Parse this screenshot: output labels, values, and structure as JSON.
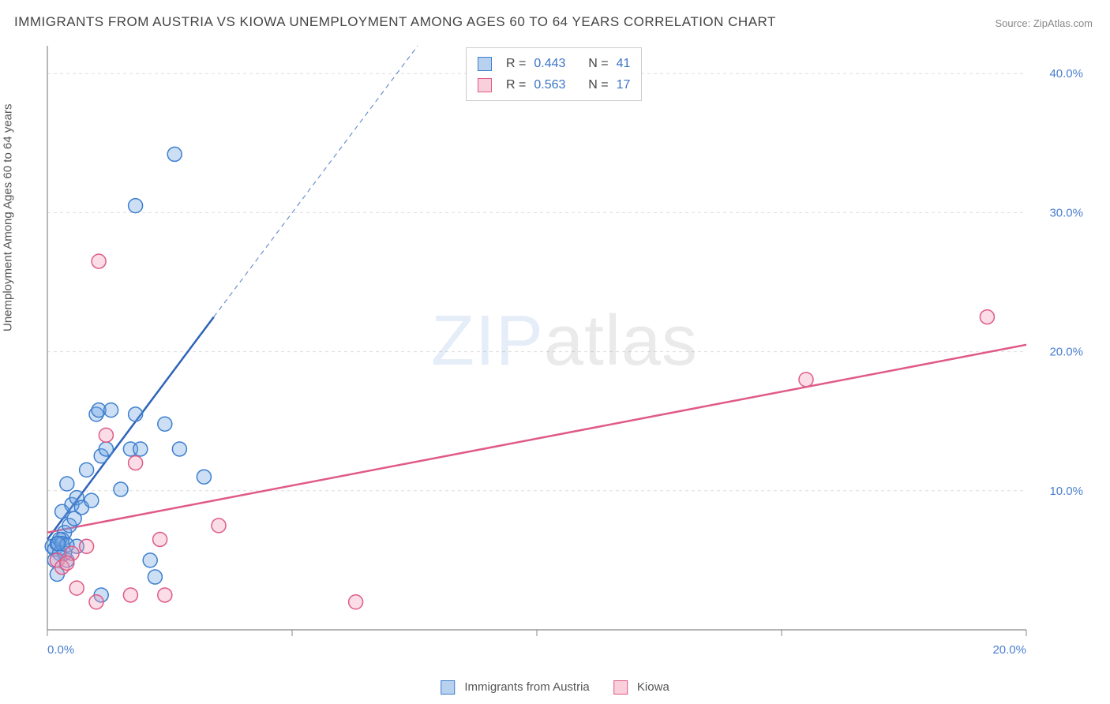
{
  "title": "IMMIGRANTS FROM AUSTRIA VS KIOWA UNEMPLOYMENT AMONG AGES 60 TO 64 YEARS CORRELATION CHART",
  "source": "Source: ZipAtlas.com",
  "watermark": "ZIPatlas",
  "ylabel": "Unemployment Among Ages 60 to 64 years",
  "chart": {
    "type": "scatter",
    "xlim": [
      0,
      20
    ],
    "ylim": [
      0,
      42
    ],
    "xtick_step": 5,
    "ytick_step": 10,
    "xtick_labels": [
      "0.0%",
      "",
      "",
      "",
      "20.0%"
    ],
    "ytick_labels": [
      "",
      "10.0%",
      "20.0%",
      "30.0%",
      "40.0%"
    ],
    "grid_color": "#dddddd",
    "axis_color": "#888888",
    "background_color": "#ffffff",
    "marker_radius": 9,
    "marker_stroke_width": 1.5,
    "marker_fill_opacity": 0.35,
    "series": [
      {
        "name": "Immigrants from Austria",
        "color": "#6fa4e0",
        "stroke": "#3d7fcf",
        "line_color": "#2d63b8",
        "line_width": 2.5,
        "r_value": "0.443",
        "n_value": "41",
        "trend": {
          "x1": 0,
          "y1": 6.5,
          "x2": 3.4,
          "y2": 22.5,
          "dash_x2": 8.1,
          "dash_y2": 44.5
        },
        "points": [
          [
            0.1,
            6.0
          ],
          [
            0.15,
            5.8
          ],
          [
            0.2,
            6.2
          ],
          [
            0.25,
            5.5
          ],
          [
            0.3,
            6.5
          ],
          [
            0.35,
            7.0
          ],
          [
            0.4,
            5.0
          ],
          [
            0.3,
            8.5
          ],
          [
            0.5,
            9.0
          ],
          [
            0.6,
            9.5
          ],
          [
            0.4,
            10.5
          ],
          [
            0.7,
            8.8
          ],
          [
            0.8,
            11.5
          ],
          [
            0.9,
            9.3
          ],
          [
            1.0,
            15.5
          ],
          [
            1.05,
            15.8
          ],
          [
            1.1,
            12.5
          ],
          [
            1.3,
            15.8
          ],
          [
            1.2,
            13.0
          ],
          [
            1.1,
            2.5
          ],
          [
            1.5,
            10.1
          ],
          [
            1.7,
            13.0
          ],
          [
            1.8,
            15.5
          ],
          [
            1.9,
            13.0
          ],
          [
            2.1,
            5.0
          ],
          [
            2.2,
            3.8
          ],
          [
            2.4,
            14.8
          ],
          [
            2.7,
            13.0
          ],
          [
            3.2,
            11.0
          ],
          [
            1.8,
            30.5
          ],
          [
            2.6,
            34.2
          ],
          [
            0.2,
            4.0
          ],
          [
            0.15,
            5.0
          ],
          [
            0.25,
            6.5
          ],
          [
            0.35,
            5.5
          ],
          [
            0.45,
            7.5
          ],
          [
            0.55,
            8.0
          ],
          [
            0.3,
            6.2
          ],
          [
            0.6,
            6.0
          ],
          [
            0.4,
            6.1
          ],
          [
            0.22,
            6.2
          ]
        ]
      },
      {
        "name": "Kiowa",
        "color": "#f29fb6",
        "stroke": "#e05a86",
        "line_color": "#e05a86",
        "line_width": 2.5,
        "r_value": "0.563",
        "n_value": "17",
        "trend": {
          "x1": 0,
          "y1": 7.0,
          "x2": 20,
          "y2": 20.5
        },
        "points": [
          [
            0.2,
            5.0
          ],
          [
            0.3,
            4.5
          ],
          [
            0.5,
            5.5
          ],
          [
            0.6,
            3.0
          ],
          [
            0.8,
            6.0
          ],
          [
            1.0,
            2.0
          ],
          [
            1.2,
            14.0
          ],
          [
            1.7,
            2.5
          ],
          [
            1.8,
            12.0
          ],
          [
            2.3,
            6.5
          ],
          [
            2.4,
            2.5
          ],
          [
            3.5,
            7.5
          ],
          [
            1.05,
            26.5
          ],
          [
            6.3,
            2.0
          ],
          [
            15.5,
            18.0
          ],
          [
            19.2,
            22.5
          ],
          [
            0.4,
            4.8
          ]
        ]
      }
    ]
  },
  "legend": {
    "series1_label": "Immigrants from Austria",
    "series2_label": "Kiowa"
  },
  "stats_box": {
    "r_label": "R =",
    "n_label": "N ="
  }
}
